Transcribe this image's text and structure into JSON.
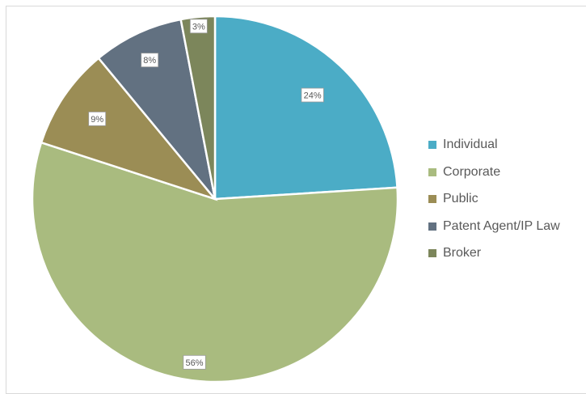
{
  "chart_data": {
    "type": "pie",
    "title": "",
    "categories": [
      "Individual",
      "Corporate",
      "Public",
      "Patent Agent/IP Law",
      "Broker"
    ],
    "values": [
      24,
      56,
      9,
      8,
      3
    ],
    "data_labels": [
      "24%",
      "56%",
      "9%",
      "8%",
      "3%"
    ],
    "colors": [
      "#4bacc6",
      "#a9bb7f",
      "#9b8d55",
      "#627181",
      "#7c865b"
    ],
    "legend_position": "right",
    "start_angle": "12 o'clock, clockwise"
  }
}
